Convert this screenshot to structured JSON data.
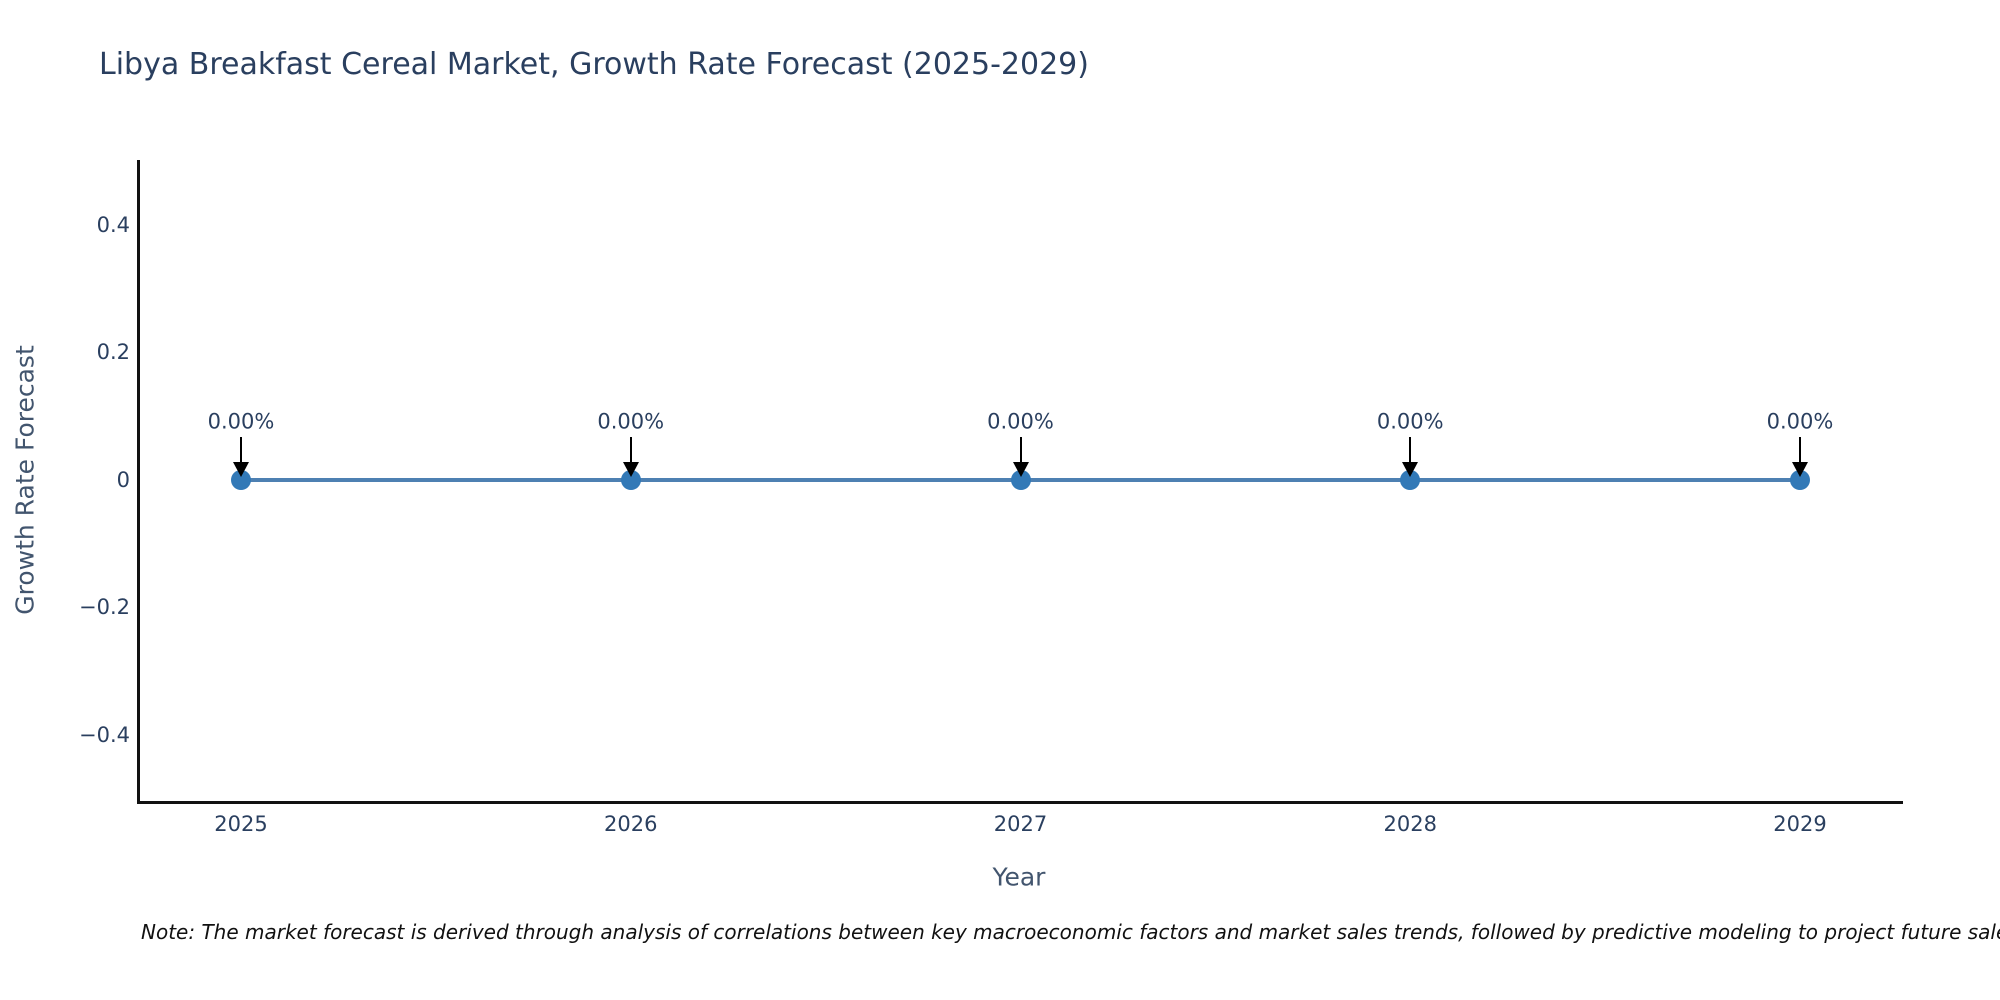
{
  "title": "Libya Breakfast Cereal Market, Growth Rate Forecast (2025-2029)",
  "note": "Note: The market forecast is derived through analysis of correlations between key macroeconomic factors and market sales trends, followed by predictive modeling to project future sales.",
  "chart_data": {
    "type": "line",
    "title": "Libya Breakfast Cereal Market, Growth Rate Forecast (2025-2029)",
    "xlabel": "Year",
    "ylabel": "Growth Rate Forecast",
    "x": [
      2025,
      2026,
      2027,
      2028,
      2029
    ],
    "series": [
      {
        "name": "Growth Rate Forecast",
        "values": [
          0,
          0,
          0,
          0,
          0
        ]
      }
    ],
    "point_labels": [
      "0.00%",
      "0.00%",
      "0.00%",
      "0.00%",
      "0.00%"
    ],
    "xtick_labels": [
      "2025",
      "2026",
      "2027",
      "2028",
      "2029"
    ],
    "ytick_labels": [
      "0.4",
      "0.2",
      "0",
      "−0.2",
      "−0.4"
    ],
    "ylim": [
      -0.5,
      0.5
    ],
    "xlim": [
      2024.74,
      2029.26
    ],
    "grid": false,
    "legend": "none",
    "colors": {
      "line": "#4d80b2",
      "marker": "#3279b7",
      "axis": "#111111",
      "tick_text": "#2a3f5f",
      "axis_title_text": "#42556e",
      "annotation_text": "#2a3f5f",
      "annotation_arrow": "#000000",
      "background": "#ffffff"
    }
  }
}
